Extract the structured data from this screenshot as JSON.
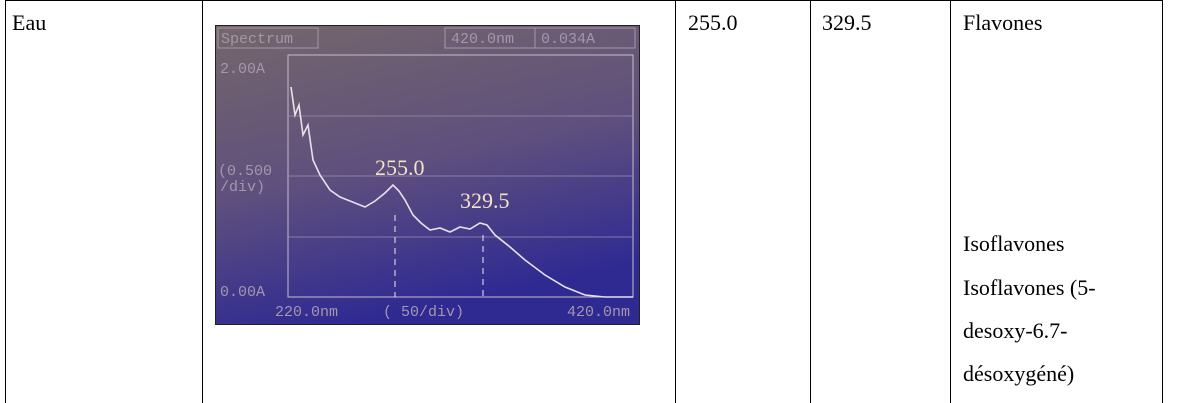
{
  "table": {
    "rows": [
      {
        "cells": [
          "Eau",
          {
            "image": {
              "header": "Spectrum",
              "cursor_wavelength": "420.0nm",
              "cursor_absorbance": "0.034A",
              "y_max": "2.00A",
              "y_scale": [
                "(0.500",
                "/div)"
              ],
              "y_min": "0.00A",
              "x_min": "220.0nm",
              "x_scale": "( 50/div)",
              "x_max": "420.0nm",
              "peaks": [
                "255.0",
                "329.5"
              ]
            }
          },
          "255.0",
          "329.5",
          [
            "Flavones",
            "Isoflavones",
            "Isoflavones (5-",
            "desoxy-6.7-",
            "désoxygéné)"
          ]
        ]
      }
    ]
  }
}
